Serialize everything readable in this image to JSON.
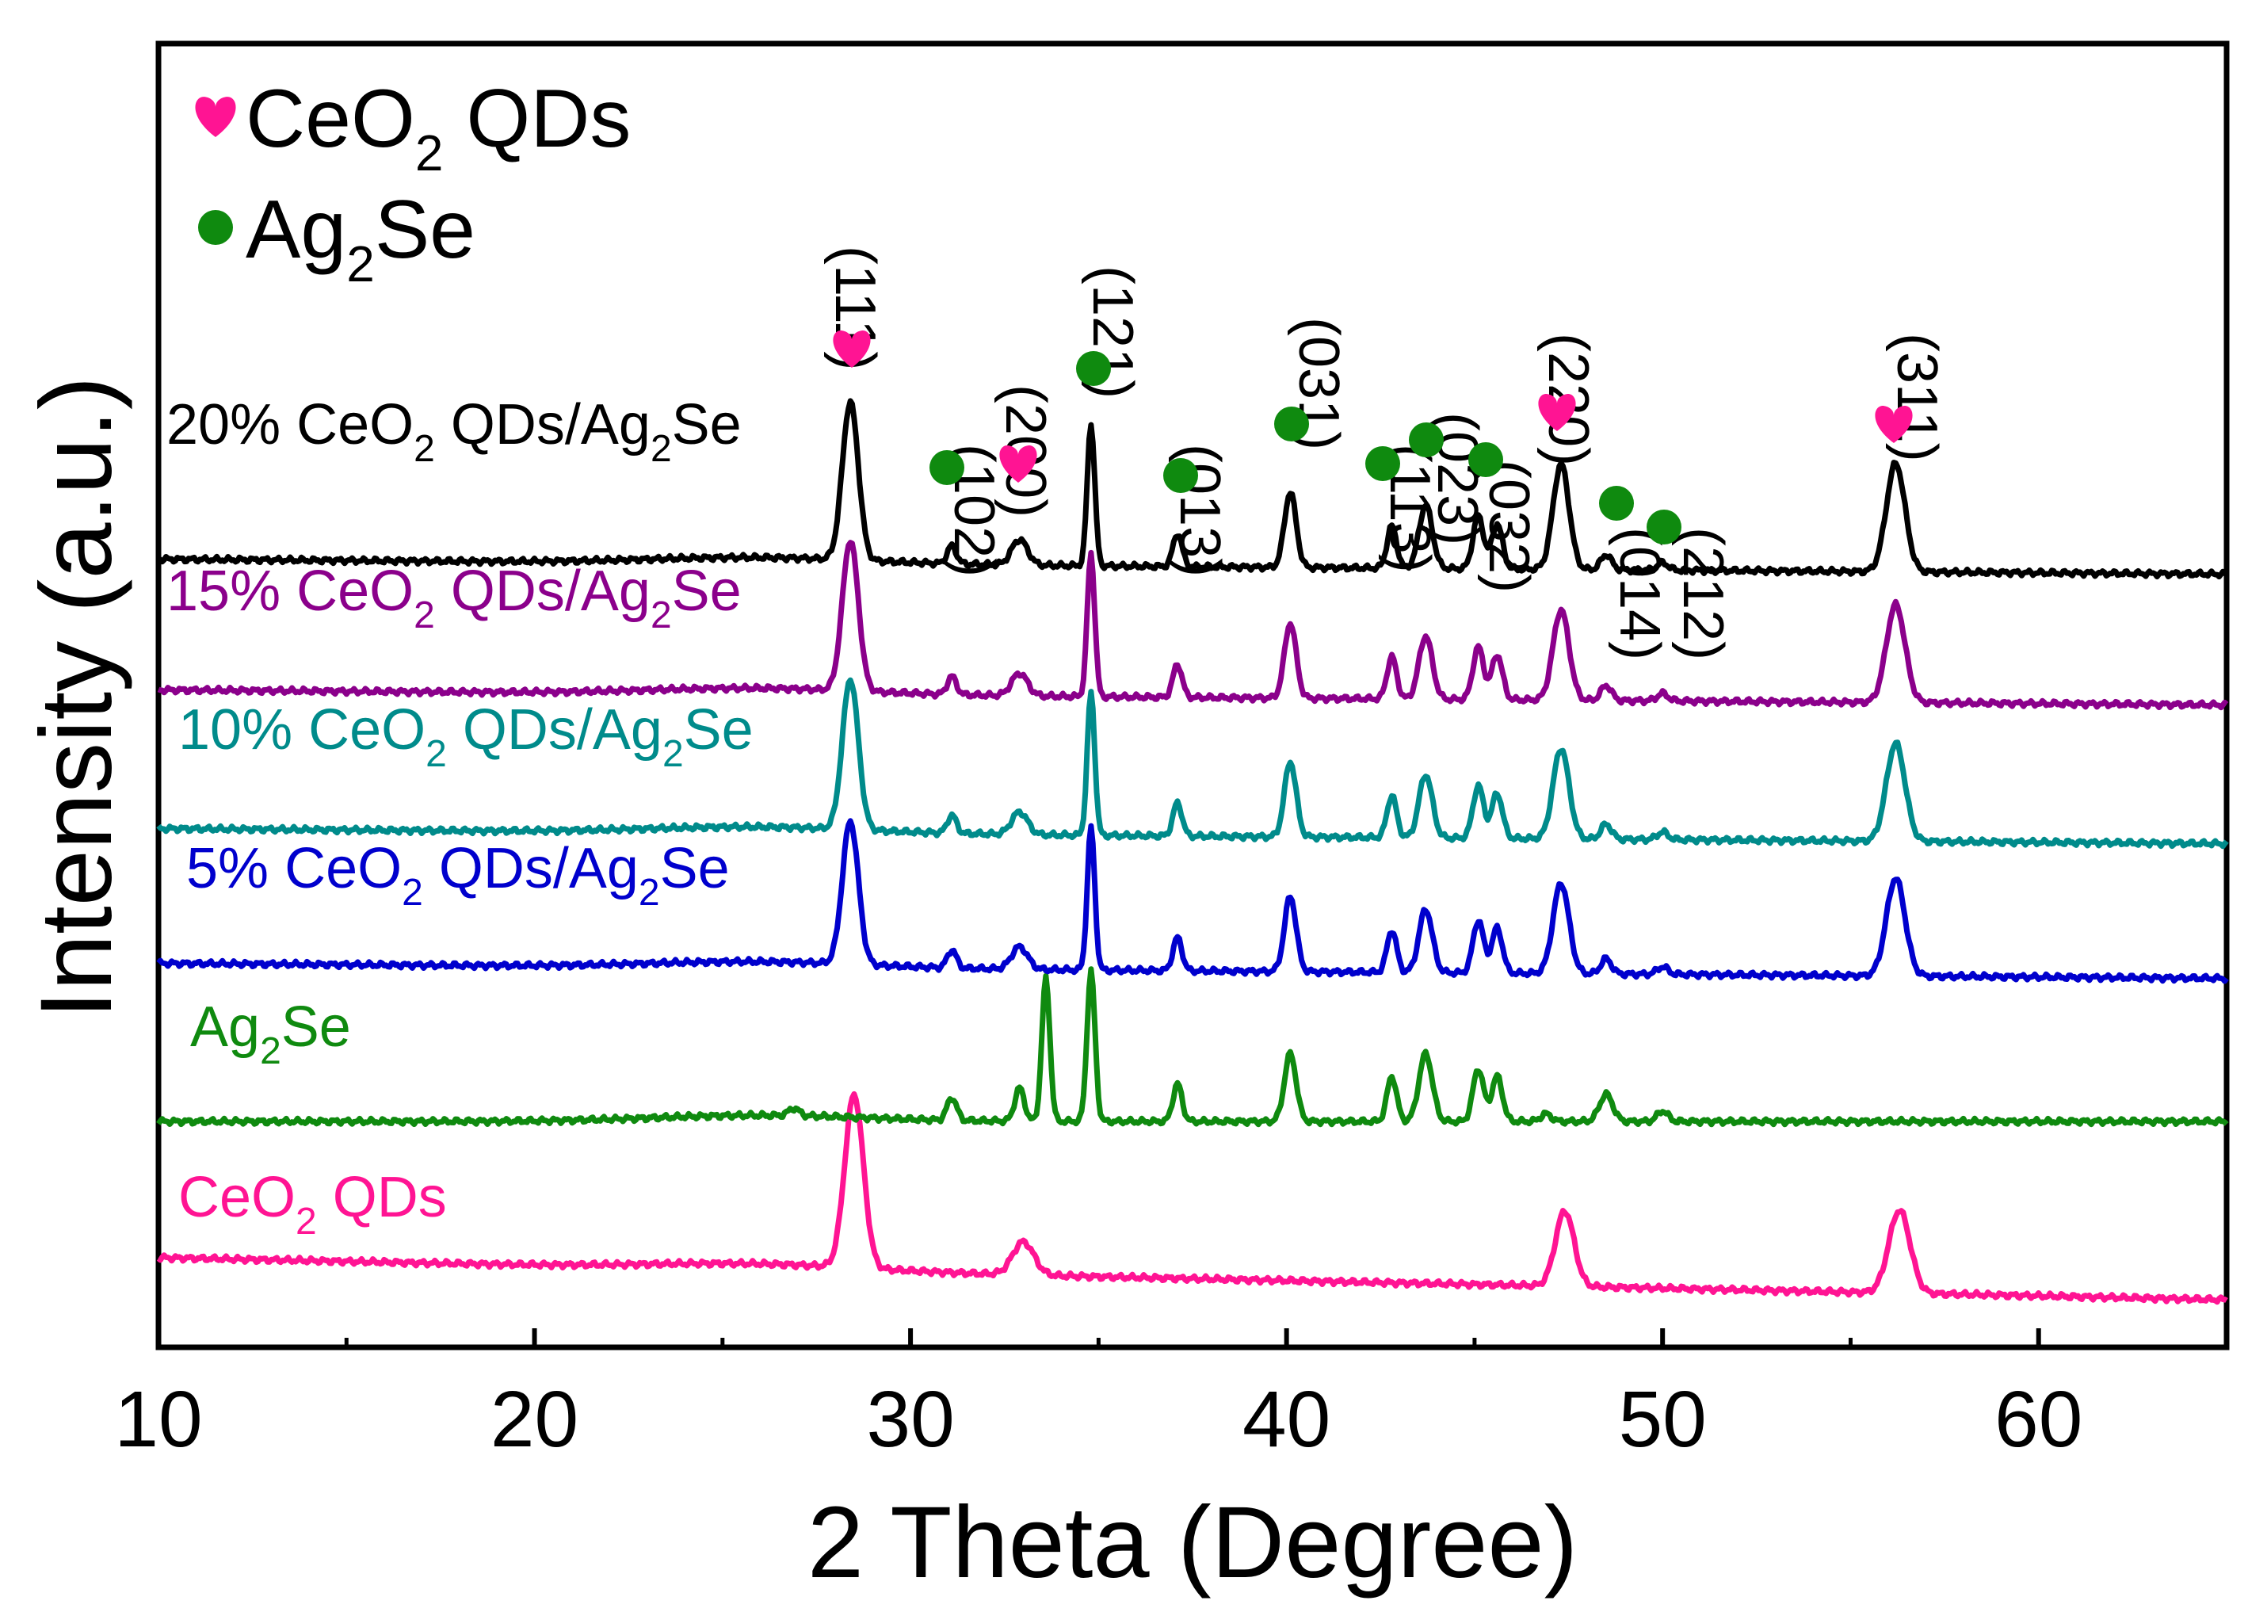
{
  "chart_data": {
    "type": "line",
    "title": "",
    "xlabel": "2 Theta (Degree)",
    "ylabel": "Intensity (a.u.)",
    "xlim": [
      10,
      65
    ],
    "xticks": [
      10,
      20,
      30,
      40,
      50,
      60
    ],
    "xtick_labels": [
      "10",
      "20",
      "30",
      "40",
      "50",
      "60"
    ],
    "y_ticks_shown": false,
    "grid": false,
    "legend": {
      "placement": "top-left",
      "entries": [
        {
          "name": "CeO2 QDs",
          "main": "CeO",
          "sub": "2",
          "tail": " QDs",
          "marker": "heart",
          "color": "#ff1493"
        },
        {
          "name": "Ag2Se",
          "main": "Ag",
          "sub": "2",
          "tail": "Se",
          "marker": "circle",
          "color": "#0f8a0f"
        }
      ]
    },
    "series": [
      {
        "name": "CeO2 QDs",
        "label_parts": [
          "CeO",
          "2",
          " QDs",
          "",
          ""
        ],
        "color": "#ff1493",
        "baseline_start": 0.28,
        "baseline_end": 0.0,
        "peaks": [
          [
            28.5,
            1.15,
            0.35
          ],
          [
            33.0,
            0.22,
            0.4
          ],
          [
            47.4,
            0.5,
            0.35
          ],
          [
            56.3,
            0.55,
            0.4
          ]
        ]
      },
      {
        "name": "Ag2Se",
        "label_parts": [
          "Ag",
          "2",
          "Se",
          "",
          ""
        ],
        "color": "#0f8a0f",
        "baseline_start": 0.0,
        "baseline_end": 0.0,
        "peaks": [
          [
            26.9,
            0.05,
            0.2
          ],
          [
            31.1,
            0.15,
            0.18
          ],
          [
            32.9,
            0.22,
            0.18
          ],
          [
            33.6,
            0.95,
            0.15
          ],
          [
            34.8,
            1.0,
            0.15
          ],
          [
            37.1,
            0.25,
            0.17
          ],
          [
            40.1,
            0.45,
            0.22
          ],
          [
            42.8,
            0.3,
            0.18
          ],
          [
            43.7,
            0.45,
            0.25
          ],
          [
            45.1,
            0.35,
            0.2
          ],
          [
            45.6,
            0.3,
            0.2
          ],
          [
            46.9,
            0.05,
            0.2
          ],
          [
            48.5,
            0.18,
            0.25
          ],
          [
            50.0,
            0.07,
            0.2
          ]
        ]
      },
      {
        "name": "5% CeO2 QDs/Ag2Se",
        "label_parts": [
          "5% CeO",
          "2",
          " QDs/Ag",
          "2",
          "Se"
        ],
        "color": "#0000cd",
        "baseline_start": 0.05,
        "baseline_end": -0.05,
        "peaks": [
          [
            28.4,
            0.95,
            0.3
          ],
          [
            31.1,
            0.12,
            0.17
          ],
          [
            32.9,
            0.15,
            0.3
          ],
          [
            34.8,
            0.95,
            0.14
          ],
          [
            37.1,
            0.22,
            0.17
          ],
          [
            40.1,
            0.5,
            0.22
          ],
          [
            42.8,
            0.28,
            0.18
          ],
          [
            43.7,
            0.42,
            0.25
          ],
          [
            45.1,
            0.35,
            0.2
          ],
          [
            45.6,
            0.3,
            0.2
          ],
          [
            47.3,
            0.6,
            0.3
          ],
          [
            48.5,
            0.1,
            0.2
          ],
          [
            50.0,
            0.05,
            0.2
          ],
          [
            56.2,
            0.65,
            0.35
          ]
        ]
      },
      {
        "name": "10% CeO2 QDs/Ag2Se",
        "label_parts": [
          "10% CeO",
          "2",
          " QDs/Ag",
          "2",
          "Se"
        ],
        "color": "#008b8b",
        "baseline_start": 0.05,
        "baseline_end": -0.05,
        "peaks": [
          [
            28.4,
            1.0,
            0.3
          ],
          [
            31.1,
            0.12,
            0.17
          ],
          [
            32.9,
            0.15,
            0.3
          ],
          [
            34.8,
            0.95,
            0.14
          ],
          [
            37.1,
            0.22,
            0.17
          ],
          [
            40.1,
            0.5,
            0.22
          ],
          [
            42.8,
            0.28,
            0.18
          ],
          [
            43.7,
            0.42,
            0.25
          ],
          [
            45.1,
            0.35,
            0.2
          ],
          [
            45.6,
            0.3,
            0.2
          ],
          [
            47.3,
            0.6,
            0.3
          ],
          [
            48.5,
            0.1,
            0.2
          ],
          [
            50.0,
            0.05,
            0.2
          ],
          [
            56.2,
            0.65,
            0.35
          ]
        ]
      },
      {
        "name": "15% CeO2 QDs/Ag2Se",
        "label_parts": [
          "15% CeO",
          "2",
          " QDs/Ag",
          "2",
          "Se"
        ],
        "color": "#8b008b",
        "baseline_start": 0.05,
        "baseline_end": -0.05,
        "peaks": [
          [
            28.4,
            1.0,
            0.3
          ],
          [
            31.1,
            0.12,
            0.17
          ],
          [
            32.9,
            0.15,
            0.3
          ],
          [
            34.8,
            0.95,
            0.14
          ],
          [
            37.1,
            0.22,
            0.17
          ],
          [
            40.1,
            0.5,
            0.22
          ],
          [
            42.8,
            0.28,
            0.18
          ],
          [
            43.7,
            0.42,
            0.25
          ],
          [
            45.1,
            0.35,
            0.2
          ],
          [
            45.6,
            0.3,
            0.2
          ],
          [
            47.3,
            0.6,
            0.3
          ],
          [
            48.5,
            0.1,
            0.2
          ],
          [
            50.0,
            0.05,
            0.2
          ],
          [
            56.2,
            0.65,
            0.35
          ]
        ]
      },
      {
        "name": "20% CeO2 QDs/Ag2Se",
        "label_parts": [
          "20% CeO",
          "2",
          " QDs/Ag",
          "2",
          "Se"
        ],
        "color": "#000000",
        "baseline_start": 0.05,
        "baseline_end": -0.05,
        "peaks": [
          [
            28.4,
            1.05,
            0.3
          ],
          [
            31.1,
            0.12,
            0.17
          ],
          [
            32.9,
            0.17,
            0.3
          ],
          [
            34.8,
            0.95,
            0.14
          ],
          [
            37.1,
            0.22,
            0.17
          ],
          [
            40.1,
            0.5,
            0.22
          ],
          [
            42.8,
            0.28,
            0.18
          ],
          [
            43.7,
            0.42,
            0.25
          ],
          [
            45.1,
            0.35,
            0.2
          ],
          [
            45.6,
            0.3,
            0.2
          ],
          [
            47.3,
            0.7,
            0.3
          ],
          [
            48.5,
            0.1,
            0.2
          ],
          [
            50.0,
            0.05,
            0.2
          ],
          [
            56.2,
            0.72,
            0.35
          ]
        ]
      }
    ],
    "annotations": [
      {
        "label": "(111)",
        "x": 28.4,
        "marker": "heart",
        "phase": "CeO2"
      },
      {
        "label": "(102)",
        "x": 31.1,
        "marker": "circle",
        "phase": "Ag2Se"
      },
      {
        "label": "(200)",
        "x": 32.9,
        "marker": "heart",
        "phase": "CeO2"
      },
      {
        "label": "(121)",
        "x": 34.8,
        "marker": "circle",
        "phase": "Ag2Se"
      },
      {
        "label": "(013)",
        "x": 37.1,
        "marker": "circle",
        "phase": "Ag2Se"
      },
      {
        "label": "(031)",
        "x": 40.1,
        "marker": "circle",
        "phase": "Ag2Se"
      },
      {
        "label": "(113)",
        "x": 42.8,
        "marker": "circle",
        "phase": "Ag2Se"
      },
      {
        "label": "(023)",
        "x": 43.9,
        "marker": "circle",
        "phase": "Ag2Se"
      },
      {
        "label": "(032)",
        "x": 45.4,
        "marker": "circle",
        "phase": "Ag2Se"
      },
      {
        "label": "(220)",
        "x": 47.3,
        "marker": "heart",
        "phase": "CeO2"
      },
      {
        "label": "(014)",
        "x": 48.7,
        "marker": "circle",
        "phase": "Ag2Se"
      },
      {
        "label": "(212)",
        "x": 50.1,
        "marker": "circle",
        "phase": "Ag2Se"
      },
      {
        "label": "(311)",
        "x": 56.2,
        "marker": "heart",
        "phase": "CeO2"
      }
    ]
  }
}
